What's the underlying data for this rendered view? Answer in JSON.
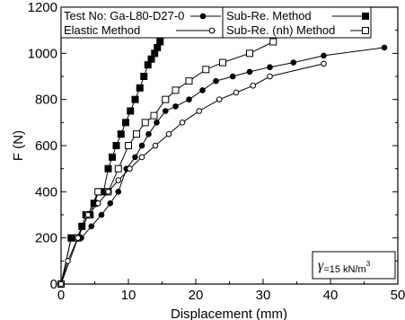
{
  "chart_data": {
    "type": "line",
    "xlabel": "Displacement (mm)",
    "ylabel": "F (N)",
    "xlim": [
      0,
      50
    ],
    "ylim": [
      0,
      1200
    ],
    "x_ticks": [
      0,
      10,
      20,
      30,
      40,
      50
    ],
    "y_ticks": [
      0,
      200,
      400,
      600,
      800,
      1000,
      1200
    ],
    "grid": false,
    "legend_position": "top",
    "legend_title": "Test No: Ga-L80-D27-0",
    "annotation": {
      "symbol": "γ",
      "text": "=15 kN/m",
      "superscript": "3"
    },
    "series": [
      {
        "name": "Sub-Re. Method",
        "marker": "filled-square",
        "color": "#000000",
        "x": [
          0,
          1.5,
          2.4,
          3.1,
          3.7,
          4.3,
          4.9,
          5.6,
          6.3,
          7.0,
          7.6,
          8.2,
          8.9,
          9.6,
          10.3,
          11.0,
          11.7,
          12.3,
          12.9,
          13.4,
          13.9,
          14.3,
          14.7
        ],
        "y": [
          0,
          200,
          200,
          250,
          300,
          300,
          350,
          400,
          400,
          500,
          550,
          600,
          650,
          700,
          750,
          800,
          850,
          900,
          950,
          975,
          1000,
          1025,
          1050
        ]
      },
      {
        "name": "Sub-Re. (nh) Method",
        "marker": "open-square",
        "color": "#000000",
        "x": [
          0,
          2.5,
          4.0,
          5.5,
          7.0,
          8.5,
          10.0,
          11.2,
          12.5,
          13.8,
          15.5,
          17.0,
          19.0,
          21.5,
          24.0,
          28.0,
          31.5
        ],
        "y": [
          0,
          200,
          300,
          400,
          400,
          500,
          600,
          650,
          700,
          730,
          800,
          840,
          880,
          930,
          960,
          1000,
          1050
        ]
      },
      {
        "name": "",
        "marker": "filled-circle",
        "color": "#000000",
        "x": [
          0,
          1.5,
          3.0,
          4.5,
          6.0,
          7.3,
          8.5,
          9.7,
          11.0,
          12.0,
          13.0,
          14.2,
          15.5,
          17.0,
          19.0,
          21.0,
          23.0,
          25.5,
          28.0,
          31.0,
          34.5,
          39.0,
          48.0
        ],
        "y": [
          0,
          200,
          200,
          250,
          300,
          350,
          400,
          500,
          550,
          600,
          650,
          700,
          750,
          770,
          800,
          840,
          880,
          900,
          920,
          940,
          960,
          990,
          1025
        ]
      },
      {
        "name": "Elastic Method",
        "marker": "open-circle",
        "color": "#000000",
        "x": [
          0,
          1.0,
          2.5,
          4.0,
          5.5,
          7.0,
          8.5,
          10.2,
          12.0,
          14.0,
          16.0,
          18.0,
          20.5,
          23.5,
          26.0,
          28.5,
          31.0,
          39.0
        ],
        "y": [
          0,
          100,
          200,
          300,
          350,
          400,
          450,
          500,
          550,
          600,
          650,
          700,
          750,
          800,
          830,
          860,
          900,
          955
        ]
      }
    ]
  }
}
